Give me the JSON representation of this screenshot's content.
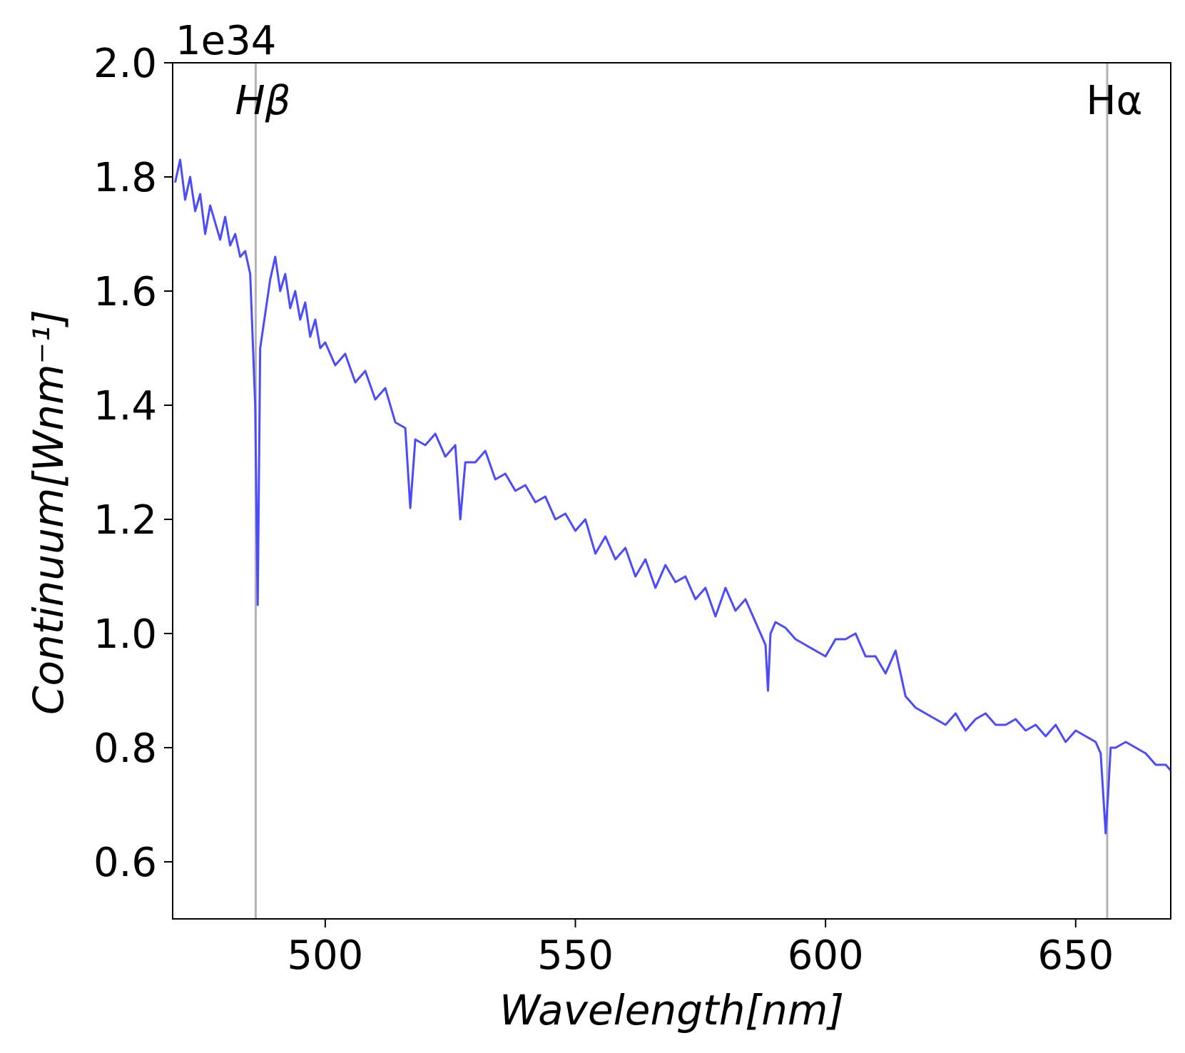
{
  "chart_data": {
    "type": "line",
    "xlabel": "Wavelength[nm]",
    "ylabel": "Continuum[Wnm⁻¹]",
    "y_offset_label": "1e34",
    "xlim": [
      469.5,
      669
    ],
    "ylim": [
      0.5,
      2.0
    ],
    "y_scale": 1e+34,
    "xticks": [
      500,
      550,
      600,
      650
    ],
    "yticks": [
      0.6,
      0.8,
      1.0,
      1.2,
      1.4,
      1.6,
      1.8,
      2.0
    ],
    "ytick_labels": [
      "0.6",
      "0.8",
      "1.0",
      "1.2",
      "1.4",
      "1.6",
      "1.8",
      "2.0"
    ],
    "grid": false,
    "reference_lines": [
      {
        "label": "Hβ",
        "x": 486.1,
        "color": "#b3b3b3"
      },
      {
        "label": "Hα",
        "x": 656.3,
        "color": "#b3b3b3"
      }
    ],
    "series": [
      {
        "color": "#4a4aff",
        "x": [
          470,
          471,
          472,
          473,
          474,
          475,
          476,
          477,
          478,
          479,
          480,
          481,
          482,
          483,
          484,
          485,
          486,
          486.5,
          487,
          488,
          489,
          490,
          491,
          492,
          493,
          494,
          495,
          496,
          497,
          498,
          499,
          500,
          502,
          504,
          506,
          508,
          510,
          512,
          514,
          516,
          517,
          518,
          520,
          522,
          524,
          526,
          527,
          528,
          530,
          532,
          534,
          536,
          538,
          540,
          542,
          544,
          546,
          548,
          550,
          552,
          554,
          556,
          558,
          560,
          562,
          564,
          566,
          568,
          570,
          572,
          574,
          576,
          578,
          580,
          582,
          584,
          586,
          588,
          588.5,
          589,
          590,
          592,
          594,
          596,
          598,
          600,
          602,
          604,
          606,
          608,
          610,
          612,
          614,
          616,
          618,
          620,
          622,
          624,
          626,
          628,
          630,
          632,
          634,
          636,
          638,
          640,
          642,
          644,
          646,
          648,
          650,
          652,
          654,
          655,
          656,
          656.5,
          657,
          658,
          660,
          662,
          664,
          666,
          668,
          669
        ],
        "y": [
          1.79,
          1.83,
          1.76,
          1.8,
          1.74,
          1.77,
          1.7,
          1.75,
          1.72,
          1.69,
          1.73,
          1.68,
          1.7,
          1.66,
          1.67,
          1.63,
          1.4,
          1.05,
          1.5,
          1.56,
          1.62,
          1.66,
          1.6,
          1.63,
          1.57,
          1.6,
          1.55,
          1.58,
          1.52,
          1.55,
          1.5,
          1.51,
          1.47,
          1.49,
          1.44,
          1.46,
          1.41,
          1.43,
          1.37,
          1.36,
          1.22,
          1.34,
          1.33,
          1.35,
          1.31,
          1.33,
          1.2,
          1.3,
          1.3,
          1.32,
          1.27,
          1.28,
          1.25,
          1.26,
          1.23,
          1.24,
          1.2,
          1.21,
          1.18,
          1.2,
          1.14,
          1.17,
          1.13,
          1.15,
          1.1,
          1.13,
          1.08,
          1.12,
          1.09,
          1.1,
          1.06,
          1.08,
          1.03,
          1.08,
          1.04,
          1.06,
          1.02,
          0.98,
          0.9,
          1.0,
          1.02,
          1.01,
          0.99,
          0.98,
          0.97,
          0.96,
          0.99,
          0.99,
          1.0,
          0.96,
          0.96,
          0.93,
          0.97,
          0.89,
          0.87,
          0.86,
          0.85,
          0.84,
          0.86,
          0.83,
          0.85,
          0.86,
          0.84,
          0.84,
          0.85,
          0.83,
          0.84,
          0.82,
          0.84,
          0.81,
          0.83,
          0.82,
          0.81,
          0.79,
          0.65,
          0.72,
          0.8,
          0.8,
          0.81,
          0.8,
          0.79,
          0.77,
          0.77,
          0.76
        ]
      }
    ]
  }
}
